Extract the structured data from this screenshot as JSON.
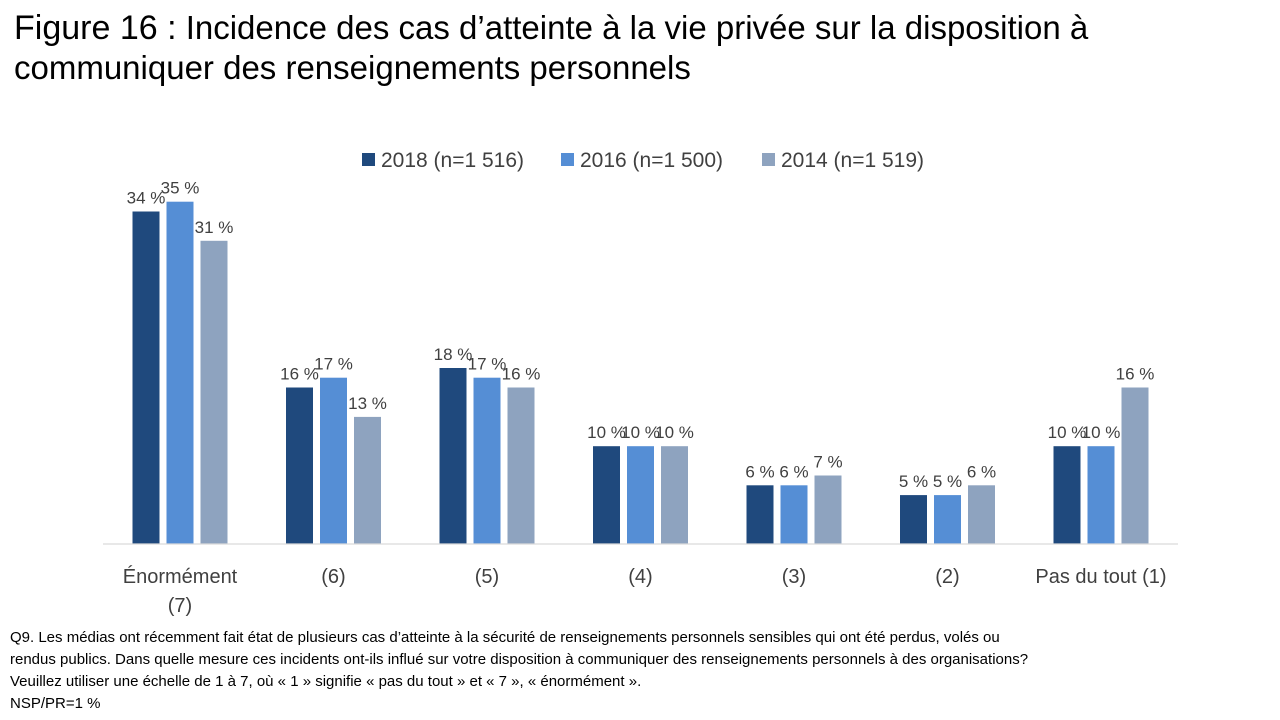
{
  "figure": {
    "label": "Figure 16 :",
    "title_line1": "Incidence des cas d’atteinte à la vie privée sur la disposition à",
    "title_line2": "communiquer des renseignements personnels"
  },
  "chart_data": {
    "type": "bar",
    "title": "Figure 16 : Incidence des cas d’atteinte à la vie privée sur la disposition à communiquer des renseignements personnels",
    "categories": [
      [
        "Énormément",
        "(7)"
      ],
      [
        "(6)"
      ],
      [
        "(5)"
      ],
      [
        "(4)"
      ],
      [
        "(3)"
      ],
      [
        "(2)"
      ],
      [
        "Pas du tout (1)"
      ]
    ],
    "series": [
      {
        "name": "2018 (n=1 516)",
        "color": "#1f497d",
        "values": [
          34,
          16,
          18,
          10,
          6,
          5,
          10
        ]
      },
      {
        "name": "2016 (n=1 500)",
        "color": "#558ed5",
        "values": [
          35,
          17,
          17,
          10,
          6,
          5,
          10
        ]
      },
      {
        "name": "2014 (n=1 519)",
        "color": "#8ea3bf",
        "values": [
          31,
          13,
          16,
          10,
          7,
          6,
          16
        ]
      }
    ],
    "value_suffix": " %",
    "xlabel": "",
    "ylabel": "",
    "ylim": [
      0,
      36
    ],
    "grid": false,
    "legend": "top-center"
  },
  "notes": {
    "line1": "Q9. Les médias ont récemment fait état de plusieurs cas d’atteinte à la sécurité de renseignements personnels sensibles qui ont été perdus, volés ou",
    "line2": "rendus publics. Dans quelle mesure ces incidents ont-ils influé sur votre disposition à communiquer des renseignements personnels à des organisations?",
    "line3": "Veuillez utiliser une échelle de 1 à 7, où « 1 » signifie « pas du tout » et « 7 », « énormément ».",
    "line4": "NSP/PR=1 %"
  }
}
